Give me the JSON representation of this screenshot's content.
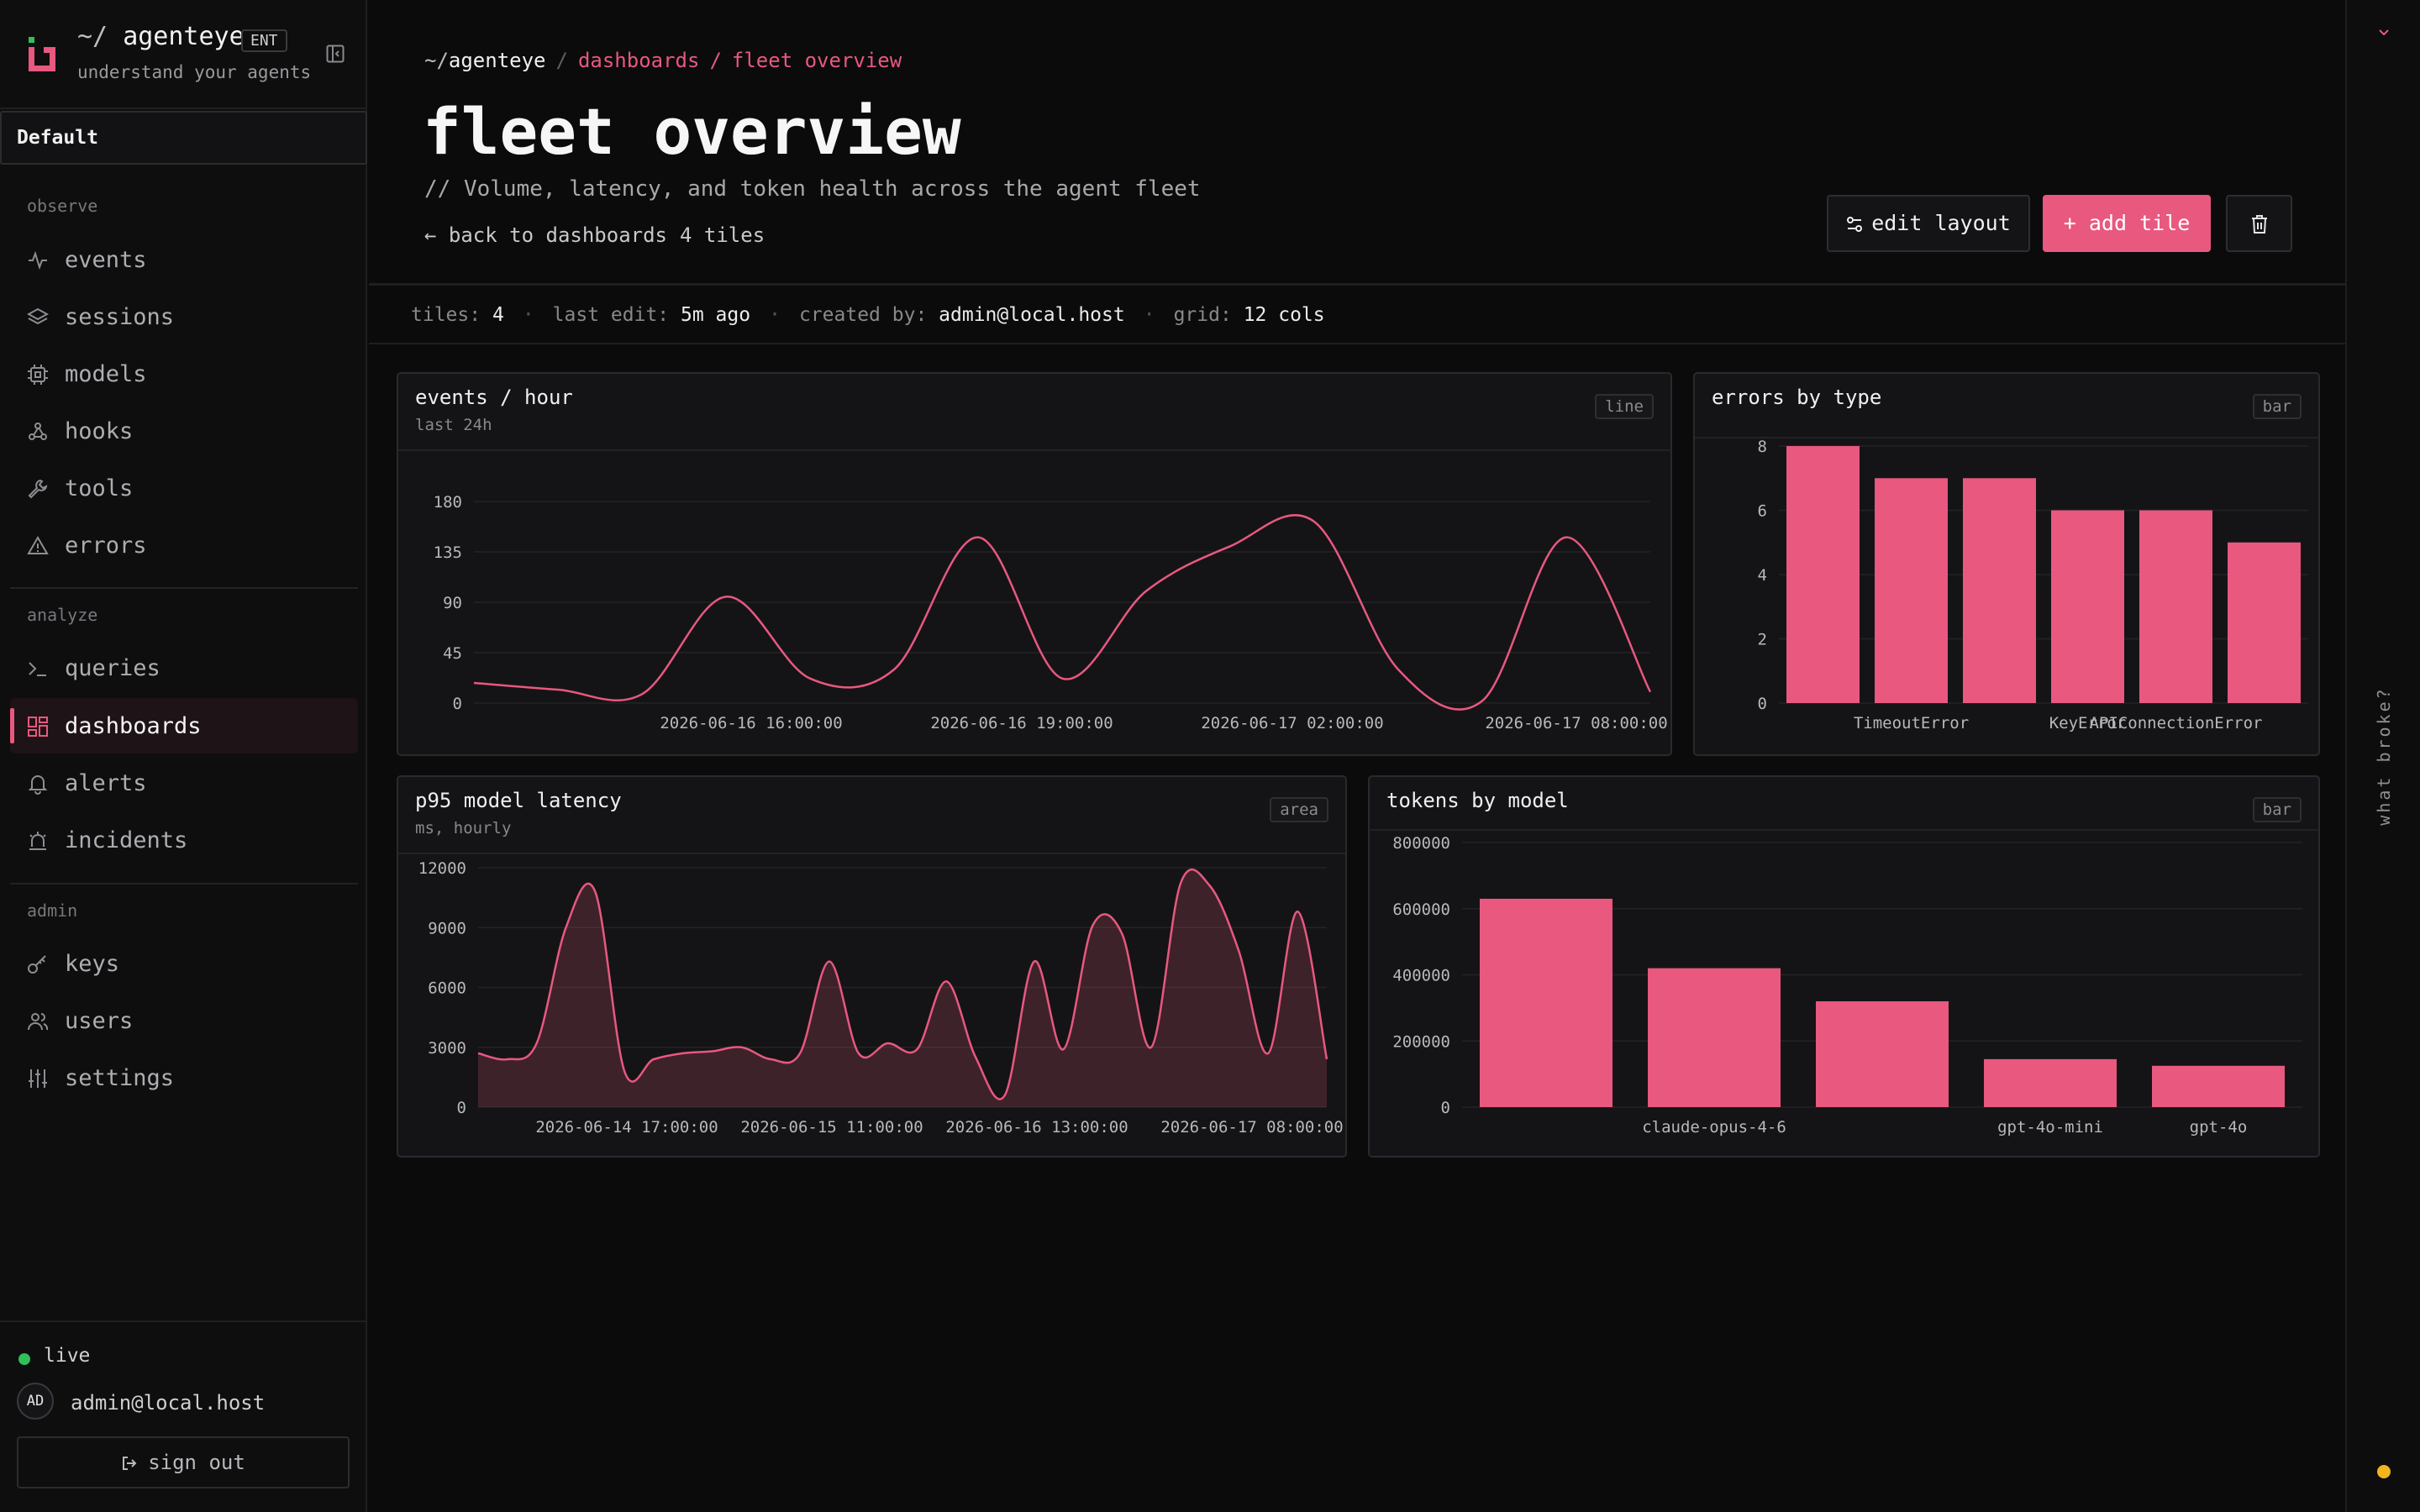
{
  "brand": {
    "tilde": "~/",
    "name": "agenteye",
    "badge": "ENT",
    "tagline": "understand your agents"
  },
  "workspace": "Default",
  "nav": {
    "sections": [
      {
        "label": "observe",
        "items": [
          {
            "id": "events",
            "label": "events",
            "icon": "activity-icon"
          },
          {
            "id": "sessions",
            "label": "sessions",
            "icon": "layers-icon"
          },
          {
            "id": "models",
            "label": "models",
            "icon": "cpu-icon"
          },
          {
            "id": "hooks",
            "label": "hooks",
            "icon": "webhook-icon"
          },
          {
            "id": "tools",
            "label": "tools",
            "icon": "wrench-icon"
          },
          {
            "id": "errors",
            "label": "errors",
            "icon": "alert-triangle-icon"
          }
        ]
      },
      {
        "label": "analyze",
        "items": [
          {
            "id": "queries",
            "label": "queries",
            "icon": "terminal-icon"
          },
          {
            "id": "dashboards",
            "label": "dashboards",
            "icon": "dashboard-grid-icon",
            "active": true
          },
          {
            "id": "alerts",
            "label": "alerts",
            "icon": "bell-icon"
          },
          {
            "id": "incidents",
            "label": "incidents",
            "icon": "siren-icon"
          }
        ]
      },
      {
        "label": "admin",
        "items": [
          {
            "id": "keys",
            "label": "keys",
            "icon": "key-icon"
          },
          {
            "id": "users",
            "label": "users",
            "icon": "users-icon"
          },
          {
            "id": "settings",
            "label": "settings",
            "icon": "sliders-icon"
          }
        ]
      }
    ]
  },
  "footer": {
    "status": "live",
    "avatar_initials": "AD",
    "user_email": "admin@local.host",
    "signout_label": "sign out"
  },
  "breadcrumb": {
    "tilde": "~/",
    "root": "agenteye",
    "sep": "/",
    "section": "dashboards",
    "current": "fleet overview"
  },
  "page": {
    "title": "fleet overview",
    "subtitle": "// Volume, latency, and token health across the agent fleet",
    "back_label": "← back to dashboards",
    "tile_count_label": "4 tiles"
  },
  "actions": {
    "edit_layout": "edit layout",
    "add_tile": "+ add tile"
  },
  "meta": {
    "tiles_label": "tiles:",
    "tiles_value": "4",
    "last_edit_label": "last edit:",
    "last_edit_value": "5m ago",
    "created_by_label": "created by:",
    "created_by_value": "admin@local.host",
    "grid_label": "grid:",
    "grid_value": "12 cols"
  },
  "colors": {
    "accent": "#e8587f",
    "live": "#2fbf5b",
    "indicator": "#f2b51c"
  },
  "rail": {
    "label": "what broke?"
  },
  "tiles": [
    {
      "title": "events / hour",
      "subtitle": "last 24h",
      "kind": "line"
    },
    {
      "title": "errors by type",
      "subtitle": "",
      "kind": "bar"
    },
    {
      "title": "p95 model latency",
      "subtitle": "ms, hourly",
      "kind": "area"
    },
    {
      "title": "tokens by model",
      "subtitle": "",
      "kind": "bar"
    }
  ],
  "chart_data": [
    {
      "type": "line",
      "title": "events / hour",
      "ylim": [
        0,
        180
      ],
      "yticks": [
        0,
        45,
        90,
        135,
        180
      ],
      "xtick_labels": [
        "2026-06-16 16:00:00",
        "2026-06-16 19:00:00",
        "2026-06-17 02:00:00",
        "2026-06-17 08:00:00"
      ],
      "values": [
        18,
        12,
        8,
        95,
        22,
        30,
        148,
        22,
        100,
        140,
        162,
        30,
        2,
        148,
        10
      ]
    },
    {
      "type": "bar",
      "title": "errors by type",
      "ylim": [
        0,
        8
      ],
      "yticks": [
        0,
        2,
        4,
        6,
        8
      ],
      "categories": [
        "",
        "TimeoutError",
        "",
        "KeyError",
        "APIConnectionError",
        ""
      ],
      "values": [
        8,
        7,
        7,
        6,
        6,
        5
      ]
    },
    {
      "type": "area",
      "title": "p95 model latency",
      "ylim": [
        0,
        12000
      ],
      "yticks": [
        0,
        3000,
        6000,
        9000,
        12000
      ],
      "xtick_labels": [
        "2026-06-14 17:00:00",
        "2026-06-15 11:00:00",
        "2026-06-16 13:00:00",
        "2026-06-17 08:00:00"
      ],
      "values": [
        2700,
        2400,
        3200,
        9000,
        10800,
        1800,
        2400,
        2700,
        2800,
        3000,
        2400,
        2700,
        7300,
        2700,
        3200,
        2900,
        6300,
        2500,
        600,
        7300,
        2900,
        9100,
        8700,
        3000,
        11200,
        11100,
        7800,
        2700,
        9800,
        2400
      ]
    },
    {
      "type": "bar",
      "title": "tokens by model",
      "ylim": [
        0,
        800000
      ],
      "yticks": [
        0,
        200000,
        400000,
        600000,
        800000
      ],
      "categories": [
        "",
        "claude-opus-4-6",
        "",
        "gpt-4o-mini",
        "gpt-4o"
      ],
      "values": [
        630000,
        420000,
        320000,
        145000,
        125000
      ]
    }
  ]
}
